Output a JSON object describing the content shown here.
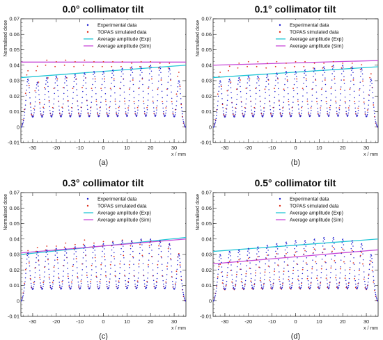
{
  "colors": {
    "experimental": "#1f1fd0",
    "simulated": "#e0301e",
    "avg_exp": "#22c6d6",
    "avg_sim": "#c84ad8"
  },
  "chart_data": [
    {
      "type": "scatter",
      "title": "0.0° collimator tilt",
      "panel_label": "(a)",
      "xlabel": "x / mm",
      "ylabel": "Normalised dose",
      "xlim": [
        -35,
        35
      ],
      "ylim": [
        -0.01,
        0.07
      ],
      "xticks": [
        "-30",
        "-20",
        "-10",
        "0",
        "10",
        "20",
        "30"
      ],
      "yticks": [
        "-0.01",
        "0",
        "0.01",
        "0.02",
        "0.03",
        "0.04",
        "0.05",
        "0.06",
        "0.07"
      ],
      "legend": [
        "Experimental data",
        "TOPAS simulated data",
        "Average amplitude (Exp)",
        "Average amplitude (Sim)"
      ],
      "peak_positions": [
        -32,
        -28,
        -24,
        -20,
        -16,
        -12,
        -8,
        -4,
        0,
        4,
        8,
        12,
        16,
        20,
        24,
        28,
        32
      ],
      "exp_peaks": [
        0.031,
        0.029,
        0.032,
        0.033,
        0.033,
        0.034,
        0.035,
        0.036,
        0.036,
        0.037,
        0.038,
        0.039,
        0.039,
        0.04,
        0.039,
        0.038,
        0.03
      ],
      "sim_peaks": [
        0.037,
        0.04,
        0.044,
        0.043,
        0.044,
        0.043,
        0.044,
        0.043,
        0.043,
        0.043,
        0.043,
        0.042,
        0.043,
        0.043,
        0.042,
        0.042,
        0.036
      ],
      "avg_exp_line": [
        [
          -35,
          0.032
        ],
        [
          35,
          0.04
        ]
      ],
      "avg_sim_line": [
        [
          -35,
          0.042
        ],
        [
          35,
          0.042
        ]
      ],
      "valley": 0.005
    },
    {
      "type": "scatter",
      "title": "0.1° collimator tilt",
      "panel_label": "(b)",
      "xlabel": "x / mm",
      "ylabel": "Normalised dose",
      "xlim": [
        -35,
        35
      ],
      "ylim": [
        -0.01,
        0.07
      ],
      "xticks": [
        "-30",
        "-20",
        "-10",
        "0",
        "10",
        "20",
        "30"
      ],
      "yticks": [
        "-0.01",
        "0",
        "0.01",
        "0.02",
        "0.03",
        "0.04",
        "0.05",
        "0.06",
        "0.07"
      ],
      "legend": [
        "Experimental data",
        "TOPAS simulated data",
        "Average amplitude (Exp)",
        "Average amplitude (Sim)"
      ],
      "peak_positions": [
        -32,
        -28,
        -24,
        -20,
        -16,
        -12,
        -8,
        -4,
        0,
        4,
        8,
        12,
        16,
        20,
        24,
        28,
        32
      ],
      "exp_peaks": [
        0.03,
        0.031,
        0.032,
        0.033,
        0.033,
        0.034,
        0.035,
        0.036,
        0.036,
        0.037,
        0.038,
        0.039,
        0.04,
        0.04,
        0.039,
        0.038,
        0.031
      ],
      "sim_peaks": [
        0.036,
        0.04,
        0.042,
        0.043,
        0.043,
        0.042,
        0.043,
        0.042,
        0.043,
        0.043,
        0.042,
        0.042,
        0.043,
        0.042,
        0.042,
        0.041,
        0.035
      ],
      "avg_exp_line": [
        [
          -35,
          0.032
        ],
        [
          35,
          0.039
        ]
      ],
      "avg_sim_line": [
        [
          -35,
          0.04
        ],
        [
          35,
          0.043
        ]
      ],
      "valley": 0.005
    },
    {
      "type": "scatter",
      "title": "0.3° collimator tilt",
      "panel_label": "(c)",
      "xlabel": "x / mm",
      "ylabel": "Normalised dose",
      "xlim": [
        -35,
        35
      ],
      "ylim": [
        -0.01,
        0.07
      ],
      "xticks": [
        "-30",
        "-20",
        "-10",
        "0",
        "10",
        "20",
        "30"
      ],
      "yticks": [
        "-0.01",
        "0",
        "0.01",
        "0.02",
        "0.03",
        "0.04",
        "0.05",
        "0.06",
        "0.07"
      ],
      "legend": [
        "Experimental data",
        "TOPAS simulated data",
        "Average amplitude (Exp)",
        "Average amplitude (Sim)"
      ],
      "peak_positions": [
        -32,
        -28,
        -24,
        -20,
        -16,
        -12,
        -8,
        -4,
        0,
        4,
        8,
        12,
        16,
        20,
        24,
        28,
        32
      ],
      "exp_peaks": [
        0.031,
        0.032,
        0.033,
        0.034,
        0.034,
        0.035,
        0.036,
        0.036,
        0.037,
        0.038,
        0.039,
        0.039,
        0.04,
        0.04,
        0.039,
        0.037,
        0.03
      ],
      "sim_peaks": [
        0.033,
        0.035,
        0.036,
        0.036,
        0.038,
        0.037,
        0.04,
        0.038,
        0.039,
        0.039,
        0.04,
        0.039,
        0.04,
        0.039,
        0.039,
        0.037,
        0.031
      ],
      "avg_exp_line": [
        [
          -35,
          0.03
        ],
        [
          35,
          0.041
        ]
      ],
      "avg_sim_line": [
        [
          -35,
          0.031
        ],
        [
          35,
          0.04
        ]
      ],
      "valley": 0.006
    },
    {
      "type": "scatter",
      "title": "0.5° collimator tilt",
      "panel_label": "(d)",
      "xlabel": "x / mm",
      "ylabel": "Normalised dose",
      "xlim": [
        -35,
        35
      ],
      "ylim": [
        -0.01,
        0.07
      ],
      "xticks": [
        "-30",
        "-20",
        "-10",
        "0",
        "10",
        "20",
        "30"
      ],
      "yticks": [
        "-0.01",
        "0",
        "0.01",
        "0.02",
        "0.03",
        "0.04",
        "0.05",
        "0.06",
        "0.07"
      ],
      "legend": [
        "Experimental data",
        "TOPAS simulated data",
        "Average amplitude (Exp)",
        "Average amplitude (Sim)"
      ],
      "peak_positions": [
        -32,
        -28,
        -24,
        -20,
        -16,
        -12,
        -8,
        -4,
        0,
        4,
        8,
        12,
        16,
        20,
        24,
        28,
        32
      ],
      "exp_peaks": [
        0.03,
        0.032,
        0.033,
        0.034,
        0.035,
        0.036,
        0.037,
        0.038,
        0.039,
        0.039,
        0.04,
        0.041,
        0.041,
        0.04,
        0.039,
        0.037,
        0.03
      ],
      "sim_peaks": [
        0.024,
        0.026,
        0.027,
        0.028,
        0.029,
        0.03,
        0.031,
        0.031,
        0.032,
        0.033,
        0.034,
        0.034,
        0.035,
        0.034,
        0.033,
        0.032,
        0.026
      ],
      "avg_exp_line": [
        [
          -35,
          0.032
        ],
        [
          35,
          0.04
        ]
      ],
      "avg_sim_line": [
        [
          -35,
          0.024
        ],
        [
          35,
          0.033
        ]
      ],
      "valley": 0.006
    }
  ]
}
